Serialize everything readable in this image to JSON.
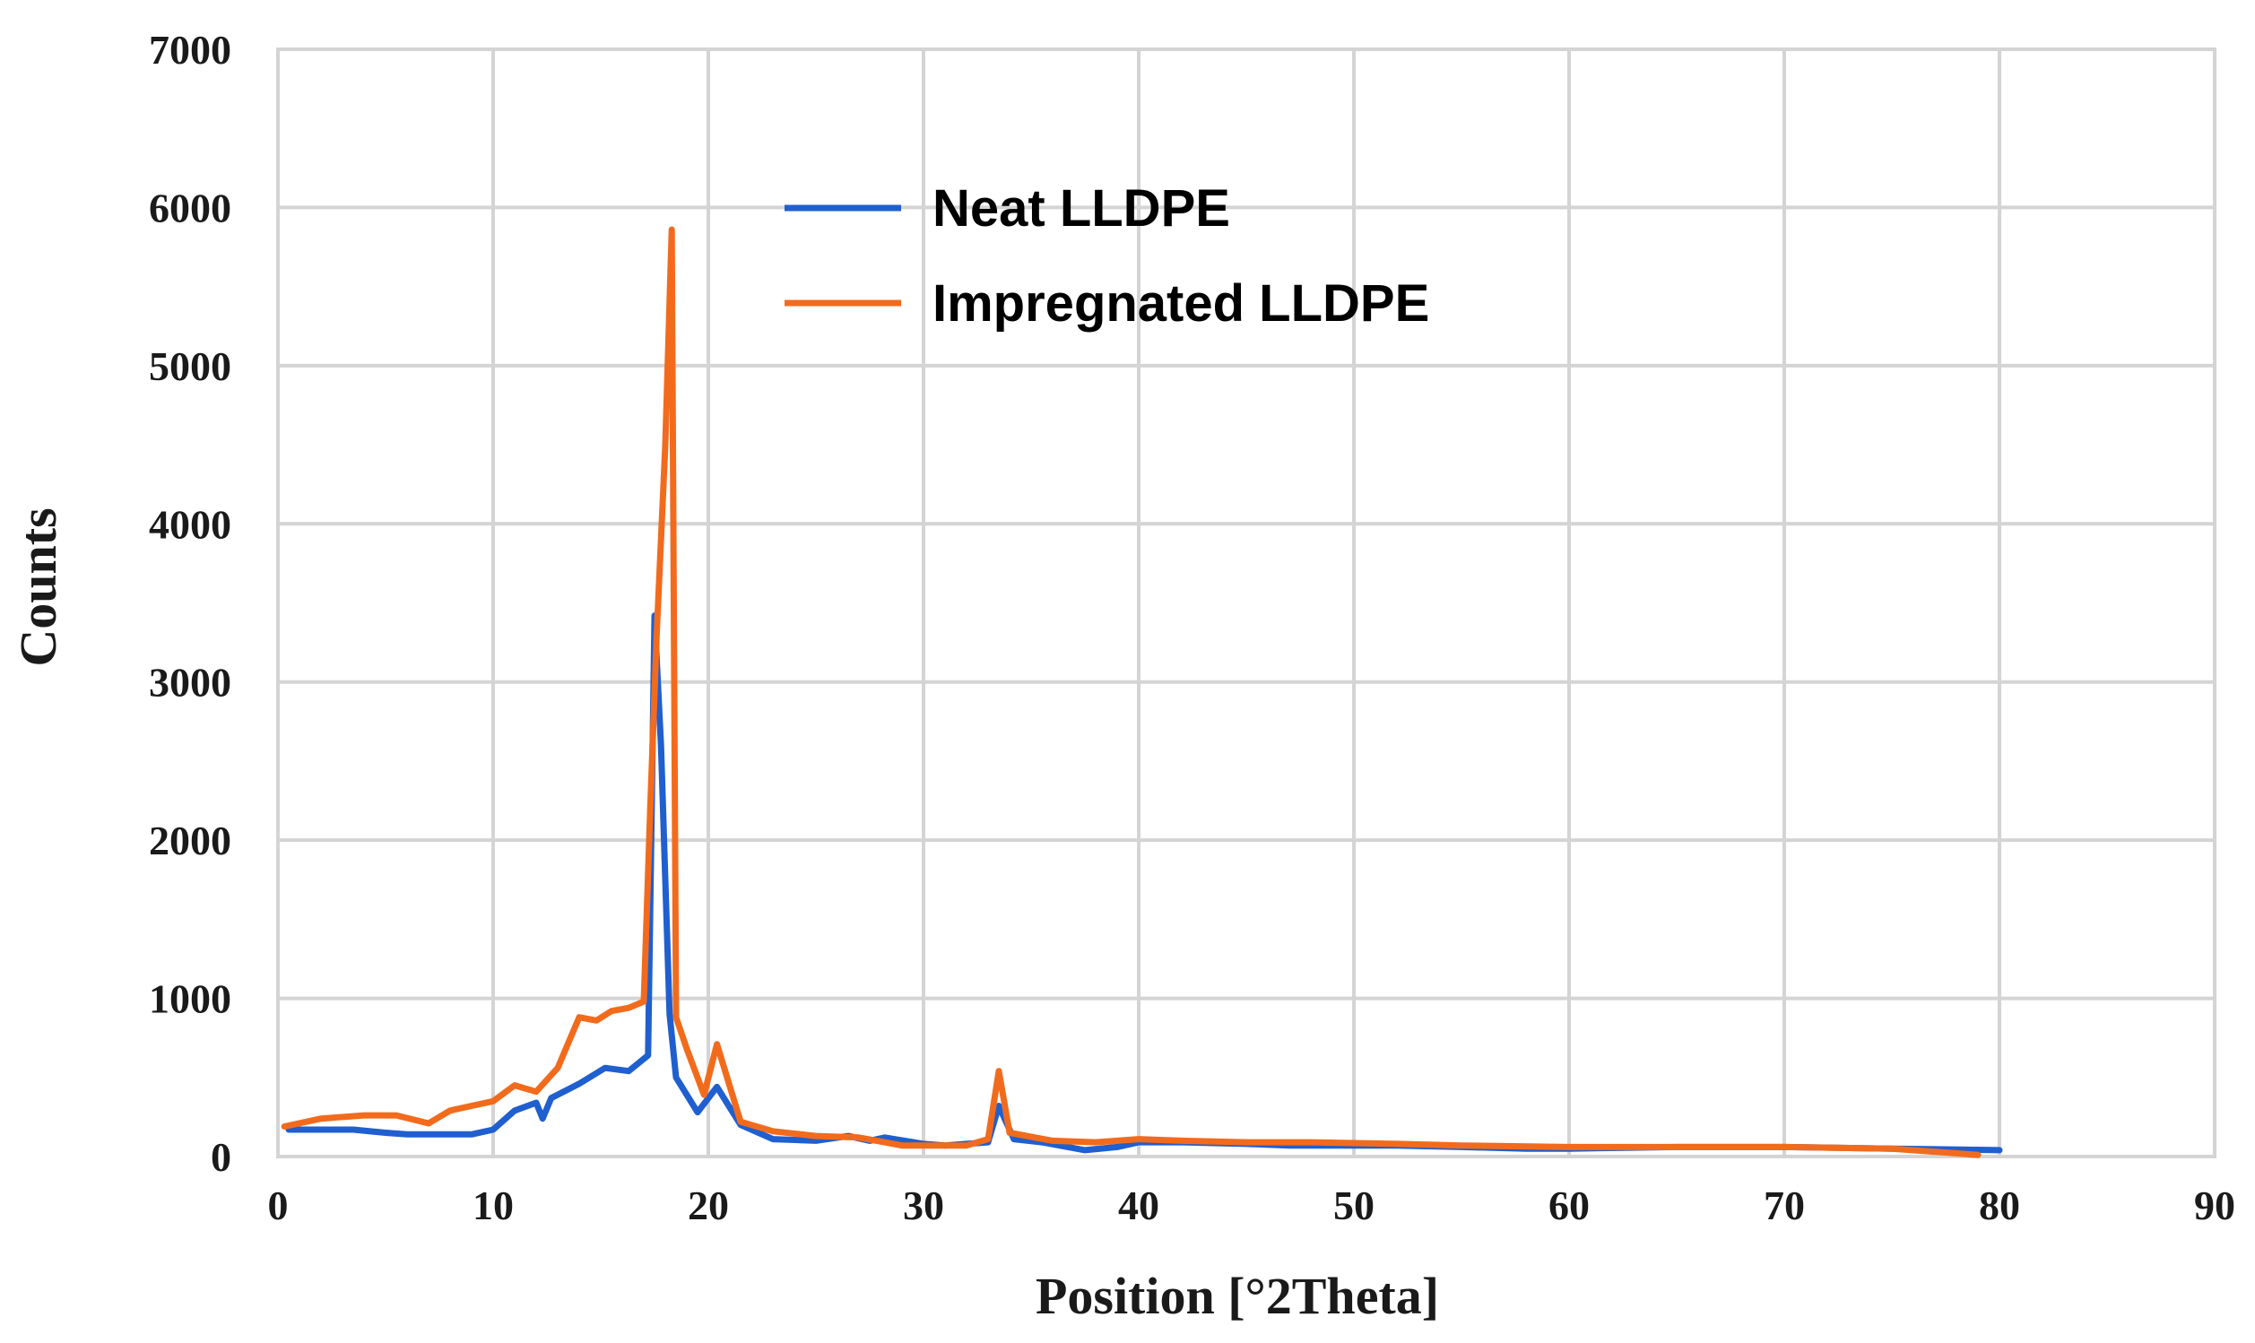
{
  "chart_data": {
    "type": "line",
    "title": "",
    "xlabel": "Position [°2Theta]",
    "ylabel": "Counts",
    "xlim": [
      0,
      90
    ],
    "ylim": [
      0,
      7000
    ],
    "x_ticks": [
      0,
      10,
      20,
      30,
      40,
      50,
      60,
      70,
      80,
      90
    ],
    "y_ticks": [
      0,
      1000,
      2000,
      3000,
      4000,
      5000,
      6000,
      7000
    ],
    "grid": true,
    "legend_position": "top-center",
    "series": [
      {
        "name": "Neat LLDPE",
        "color": "#1f5fcf",
        "x": [
          0.5,
          2,
          3.5,
          5,
          6,
          8,
          9,
          10,
          11,
          12,
          12.3,
          12.7,
          14,
          15.2,
          16.3,
          17.2,
          17.5,
          17.8,
          18.2,
          18.5,
          19.5,
          20.4,
          21.5,
          23,
          25,
          26.5,
          27.5,
          28.2,
          30,
          31,
          32,
          33,
          33.5,
          34.2,
          35.5,
          37.5,
          39,
          40,
          42,
          45,
          47,
          50,
          52,
          55,
          58,
          60,
          65,
          70,
          75,
          80
        ],
        "y": [
          170,
          170,
          170,
          150,
          140,
          140,
          140,
          170,
          290,
          340,
          240,
          370,
          460,
          560,
          540,
          640,
          3420,
          2600,
          900,
          500,
          280,
          440,
          200,
          110,
          100,
          130,
          100,
          120,
          80,
          70,
          80,
          90,
          320,
          110,
          90,
          40,
          60,
          90,
          90,
          80,
          70,
          70,
          70,
          60,
          50,
          50,
          60,
          60,
          50,
          40
        ]
      },
      {
        "name": "Impregnated LLDPE",
        "color": "#f26b1d",
        "x": [
          0.3,
          2,
          4,
          5.5,
          7,
          8,
          9,
          10,
          11,
          12,
          13,
          14,
          14.8,
          15.5,
          16.3,
          17,
          17.3,
          17.6,
          18,
          18.3,
          18.5,
          19,
          19.8,
          20.4,
          21.5,
          23,
          25,
          27,
          29,
          30,
          32,
          33,
          33.5,
          34,
          36,
          38,
          40,
          42,
          45,
          48,
          52,
          55,
          60,
          65,
          70,
          75,
          79
        ],
        "y": [
          190,
          240,
          260,
          260,
          210,
          290,
          320,
          350,
          450,
          410,
          560,
          880,
          860,
          920,
          940,
          980,
          2200,
          3300,
          4500,
          5860,
          880,
          680,
          390,
          710,
          220,
          160,
          130,
          120,
          70,
          70,
          70,
          110,
          540,
          150,
          100,
          90,
          110,
          100,
          90,
          90,
          80,
          70,
          60,
          60,
          60,
          50,
          10
        ]
      }
    ]
  }
}
